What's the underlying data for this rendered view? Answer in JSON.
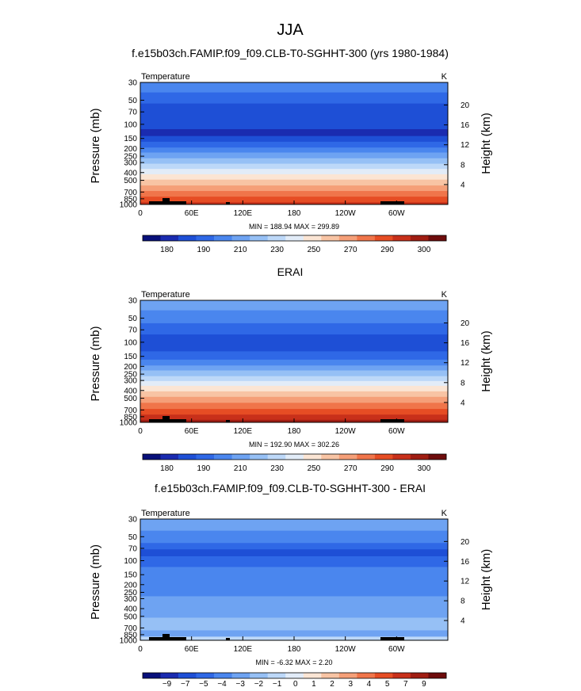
{
  "season": "JJA",
  "chart_data": [
    {
      "type": "heatmap",
      "title": "f.e15b03ch.FAMIP.f09_f09.CLB-T0-SGHHT-300 (yrs 1980-1984)",
      "left_label": "Temperature",
      "right_label": "K",
      "ylabel": "Pressure (mb)",
      "y2label": "Height (km)",
      "x_ticks": [
        "0",
        "60E",
        "120E",
        "180",
        "120W",
        "60W"
      ],
      "y_ticks": [
        "30",
        "50",
        "70",
        "100",
        "150",
        "200",
        "250",
        "300",
        "400",
        "500",
        "700",
        "850",
        "1000"
      ],
      "height_ticks": [
        "20",
        "16",
        "12",
        "8",
        "4"
      ],
      "min_max": "MIN = 188.94   MAX = 299.89",
      "colorbar_labels": [
        "180",
        "190",
        "210",
        "230",
        "250",
        "270",
        "290",
        "300"
      ],
      "colors": [
        "#08107a",
        "#1a2bb0",
        "#1e4fd6",
        "#2f68e6",
        "#4a86ee",
        "#6ea3f2",
        "#96c0f5",
        "#bdd8f8",
        "#e2ecf8",
        "#fbe5d4",
        "#f8c4a4",
        "#f59f78",
        "#f0754a",
        "#e64d24",
        "#c8301a",
        "#a01d12",
        "#6e0c0c"
      ],
      "bands": [
        {
          "p": 30,
          "c": 4
        },
        {
          "p": 40,
          "c": 3
        },
        {
          "p": 55,
          "c": 2
        },
        {
          "p": 115,
          "c": 1
        },
        {
          "p": 140,
          "c": 2
        },
        {
          "p": 165,
          "c": 3
        },
        {
          "p": 195,
          "c": 4
        },
        {
          "p": 225,
          "c": 5
        },
        {
          "p": 265,
          "c": 6
        },
        {
          "p": 310,
          "c": 7
        },
        {
          "p": 360,
          "c": 8
        },
        {
          "p": 420,
          "c": 9
        },
        {
          "p": 490,
          "c": 10
        },
        {
          "p": 580,
          "c": 11
        },
        {
          "p": 680,
          "c": 12
        },
        {
          "p": 800,
          "c": 13
        },
        {
          "p": 940,
          "c": 14
        }
      ]
    },
    {
      "type": "heatmap",
      "title": "ERAI",
      "left_label": "Temperature",
      "right_label": "K",
      "ylabel": "Pressure (mb)",
      "y2label": "Height (km)",
      "x_ticks": [
        "0",
        "60E",
        "120E",
        "180",
        "120W",
        "60W"
      ],
      "y_ticks": [
        "30",
        "50",
        "70",
        "100",
        "150",
        "200",
        "250",
        "300",
        "400",
        "500",
        "700",
        "850",
        "1000"
      ],
      "height_ticks": [
        "20",
        "16",
        "12",
        "8",
        "4"
      ],
      "min_max": "MIN = 192.90   MAX = 302.26",
      "colorbar_labels": [
        "180",
        "190",
        "210",
        "230",
        "250",
        "270",
        "290",
        "300"
      ],
      "colors": [
        "#08107a",
        "#1a2bb0",
        "#1e4fd6",
        "#2f68e6",
        "#4a86ee",
        "#6ea3f2",
        "#96c0f5",
        "#bdd8f8",
        "#e2ecf8",
        "#fbe5d4",
        "#f8c4a4",
        "#f59f78",
        "#f0754a",
        "#e64d24",
        "#c8301a",
        "#a01d12",
        "#6e0c0c"
      ],
      "bands": [
        {
          "p": 30,
          "c": 5
        },
        {
          "p": 40,
          "c": 4
        },
        {
          "p": 58,
          "c": 3
        },
        {
          "p": 80,
          "c": 2
        },
        {
          "p": 130,
          "c": 3
        },
        {
          "p": 165,
          "c": 4
        },
        {
          "p": 195,
          "c": 5
        },
        {
          "p": 225,
          "c": 6
        },
        {
          "p": 265,
          "c": 7
        },
        {
          "p": 305,
          "c": 8
        },
        {
          "p": 350,
          "c": 9
        },
        {
          "p": 410,
          "c": 10
        },
        {
          "p": 480,
          "c": 11
        },
        {
          "p": 570,
          "c": 12
        },
        {
          "p": 680,
          "c": 13
        },
        {
          "p": 800,
          "c": 14
        },
        {
          "p": 930,
          "c": 15
        }
      ]
    },
    {
      "type": "heatmap",
      "title": "f.e15b03ch.FAMIP.f09_f09.CLB-T0-SGHHT-300 - ERAI",
      "left_label": "Temperature",
      "right_label": "K",
      "ylabel": "Pressure (mb)",
      "y2label": "Height (km)",
      "x_ticks": [
        "0",
        "60E",
        "120E",
        "180",
        "120W",
        "60W"
      ],
      "y_ticks": [
        "30",
        "50",
        "70",
        "100",
        "150",
        "200",
        "250",
        "300",
        "400",
        "500",
        "700",
        "850",
        "1000"
      ],
      "height_ticks": [
        "20",
        "16",
        "12",
        "8",
        "4"
      ],
      "min_max": "MIN =   -6.32   MAX =    2.20",
      "colorbar_labels": [
        "−9",
        "−7",
        "−5",
        "−4",
        "−3",
        "−2",
        "−1",
        "0",
        "1",
        "2",
        "3",
        "4",
        "5",
        "7",
        "9"
      ],
      "colors": [
        "#08107a",
        "#1a2bb0",
        "#1e4fd6",
        "#2f68e6",
        "#4a86ee",
        "#6ea3f2",
        "#96c0f5",
        "#bdd8f8",
        "#e2ecf8",
        "#fbe5d4",
        "#f8c4a4",
        "#f59f78",
        "#f0754a",
        "#e64d24",
        "#c8301a",
        "#a01d12",
        "#6e0c0c"
      ],
      "bands": [
        {
          "p": 30,
          "c": 5
        },
        {
          "p": 42,
          "c": 4
        },
        {
          "p": 60,
          "c": 3
        },
        {
          "p": 72,
          "c": 2
        },
        {
          "p": 88,
          "c": 3
        },
        {
          "p": 120,
          "c": 4
        },
        {
          "p": 280,
          "c": 5
        },
        {
          "p": 520,
          "c": 6
        },
        {
          "p": 750,
          "c": 5
        },
        {
          "p": 900,
          "c": 7
        }
      ]
    }
  ]
}
